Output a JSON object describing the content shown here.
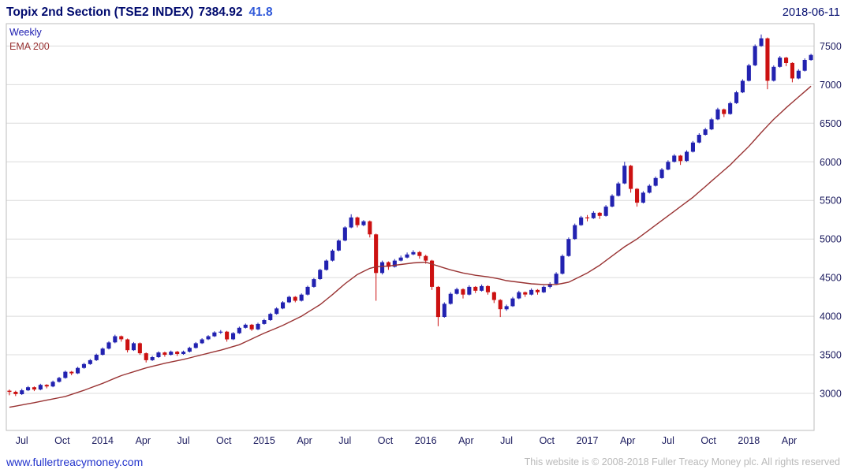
{
  "header": {
    "title": "Topix 2nd Section (TSE2 INDEX)",
    "last_price": "7384.92",
    "change": "41.8",
    "date": "2018-06-11"
  },
  "legend": {
    "series1": "Weekly",
    "series2": "EMA 200"
  },
  "footer": {
    "site_link": "www.fullertreacymoney.com",
    "copyright": "This website is © 2008-2018 Fuller Treacy Money plc. All rights reserved"
  },
  "colors": {
    "up": "#2222b0",
    "down": "#cc1111",
    "ema": "#993333",
    "grid": "#dcdcdc",
    "frame": "#bdbdbd",
    "axis_text": "#1b1b5e",
    "title": "#000a6e",
    "change": "#3059d9",
    "link": "#2233cc",
    "muted": "#b9b9b9"
  },
  "chart_data": {
    "type": "candlestick",
    "title": "Topix 2nd Section (TSE2 INDEX)",
    "interval": "Weekly",
    "overlay": "EMA 200",
    "last": 7384.92,
    "change": 41.8,
    "date": "2018-06-11",
    "legend": [
      "Weekly",
      "EMA 200"
    ],
    "legend_position": "top-left",
    "grid": "horizontal",
    "ylim": [
      2520,
      7790
    ],
    "yticks": [
      3000,
      3500,
      4000,
      4500,
      5000,
      5500,
      6000,
      6500,
      7000,
      7500
    ],
    "xticks": [
      {
        "label": "Jul",
        "pos": 2
      },
      {
        "label": "Oct",
        "pos": 8.5
      },
      {
        "label": "2014",
        "pos": 15
      },
      {
        "label": "Apr",
        "pos": 21.5
      },
      {
        "label": "Jul",
        "pos": 28
      },
      {
        "label": "Oct",
        "pos": 34.5
      },
      {
        "label": "2015",
        "pos": 41
      },
      {
        "label": "Apr",
        "pos": 47.5
      },
      {
        "label": "Jul",
        "pos": 54
      },
      {
        "label": "Oct",
        "pos": 60.5
      },
      {
        "label": "2016",
        "pos": 67
      },
      {
        "label": "Apr",
        "pos": 73.5
      },
      {
        "label": "Jul",
        "pos": 80
      },
      {
        "label": "Oct",
        "pos": 86.5
      },
      {
        "label": "2017",
        "pos": 93
      },
      {
        "label": "Apr",
        "pos": 99.5
      },
      {
        "label": "Jul",
        "pos": 106
      },
      {
        "label": "Oct",
        "pos": 112.5
      },
      {
        "label": "2018",
        "pos": 119
      },
      {
        "label": "Apr",
        "pos": 125.5
      }
    ],
    "candles": [
      [
        3035,
        3050,
        2975,
        3020
      ],
      [
        3020,
        3035,
        2965,
        2990
      ],
      [
        2990,
        3060,
        2980,
        3040
      ],
      [
        3040,
        3095,
        3030,
        3080
      ],
      [
        3080,
        3090,
        3030,
        3050
      ],
      [
        3050,
        3125,
        3040,
        3110
      ],
      [
        3110,
        3120,
        3065,
        3090
      ],
      [
        3090,
        3165,
        3080,
        3150
      ],
      [
        3150,
        3215,
        3140,
        3200
      ],
      [
        3200,
        3295,
        3190,
        3280
      ],
      [
        3280,
        3290,
        3235,
        3260
      ],
      [
        3260,
        3345,
        3250,
        3330
      ],
      [
        3330,
        3395,
        3320,
        3380
      ],
      [
        3380,
        3445,
        3370,
        3430
      ],
      [
        3430,
        3515,
        3420,
        3500
      ],
      [
        3500,
        3595,
        3490,
        3580
      ],
      [
        3580,
        3675,
        3570,
        3660
      ],
      [
        3660,
        3760,
        3650,
        3740
      ],
      [
        3740,
        3750,
        3670,
        3700
      ],
      [
        3700,
        3710,
        3530,
        3560
      ],
      [
        3560,
        3665,
        3550,
        3650
      ],
      [
        3650,
        3660,
        3500,
        3520
      ],
      [
        3520,
        3530,
        3400,
        3430
      ],
      [
        3430,
        3485,
        3420,
        3470
      ],
      [
        3470,
        3545,
        3460,
        3530
      ],
      [
        3530,
        3540,
        3475,
        3500
      ],
      [
        3500,
        3555,
        3490,
        3540
      ],
      [
        3540,
        3550,
        3485,
        3510
      ],
      [
        3510,
        3555,
        3500,
        3540
      ],
      [
        3540,
        3605,
        3530,
        3590
      ],
      [
        3590,
        3665,
        3580,
        3650
      ],
      [
        3650,
        3715,
        3640,
        3700
      ],
      [
        3700,
        3755,
        3690,
        3740
      ],
      [
        3740,
        3805,
        3730,
        3790
      ],
      [
        3790,
        3820,
        3770,
        3800
      ],
      [
        3800,
        3810,
        3670,
        3700
      ],
      [
        3700,
        3795,
        3690,
        3780
      ],
      [
        3780,
        3865,
        3770,
        3850
      ],
      [
        3850,
        3905,
        3840,
        3890
      ],
      [
        3890,
        3900,
        3810,
        3830
      ],
      [
        3830,
        3915,
        3820,
        3900
      ],
      [
        3900,
        3965,
        3890,
        3950
      ],
      [
        3950,
        4045,
        3940,
        4030
      ],
      [
        4030,
        4115,
        4020,
        4100
      ],
      [
        4100,
        4195,
        4090,
        4180
      ],
      [
        4180,
        4265,
        4170,
        4250
      ],
      [
        4250,
        4260,
        4180,
        4200
      ],
      [
        4200,
        4295,
        4190,
        4280
      ],
      [
        4280,
        4395,
        4270,
        4380
      ],
      [
        4380,
        4495,
        4370,
        4480
      ],
      [
        4480,
        4615,
        4470,
        4600
      ],
      [
        4600,
        4735,
        4590,
        4720
      ],
      [
        4720,
        4865,
        4710,
        4850
      ],
      [
        4850,
        4995,
        4840,
        4980
      ],
      [
        4980,
        5165,
        4970,
        5150
      ],
      [
        5150,
        5320,
        5140,
        5280
      ],
      [
        5280,
        5290,
        5150,
        5180
      ],
      [
        5180,
        5245,
        5165,
        5230
      ],
      [
        5230,
        5240,
        5020,
        5060
      ],
      [
        5060,
        5070,
        4200,
        4560
      ],
      [
        4560,
        4720,
        4540,
        4700
      ],
      [
        4700,
        4710,
        4600,
        4640
      ],
      [
        4640,
        4740,
        4630,
        4720
      ],
      [
        4720,
        4785,
        4710,
        4760
      ],
      [
        4760,
        4825,
        4750,
        4800
      ],
      [
        4800,
        4855,
        4790,
        4830
      ],
      [
        4830,
        4845,
        4745,
        4780
      ],
      [
        4780,
        4795,
        4680,
        4720
      ],
      [
        4720,
        4730,
        4340,
        4380
      ],
      [
        4380,
        4390,
        3870,
        3990
      ],
      [
        3990,
        4180,
        3980,
        4160
      ],
      [
        4160,
        4310,
        4150,
        4290
      ],
      [
        4290,
        4370,
        4280,
        4350
      ],
      [
        4350,
        4360,
        4230,
        4280
      ],
      [
        4280,
        4400,
        4270,
        4380
      ],
      [
        4380,
        4390,
        4300,
        4330
      ],
      [
        4330,
        4410,
        4320,
        4390
      ],
      [
        4390,
        4400,
        4280,
        4310
      ],
      [
        4310,
        4320,
        4170,
        4210
      ],
      [
        4210,
        4220,
        3990,
        4090
      ],
      [
        4090,
        4150,
        4070,
        4130
      ],
      [
        4130,
        4250,
        4120,
        4230
      ],
      [
        4230,
        4330,
        4220,
        4310
      ],
      [
        4310,
        4320,
        4250,
        4280
      ],
      [
        4280,
        4360,
        4270,
        4340
      ],
      [
        4340,
        4350,
        4280,
        4310
      ],
      [
        4310,
        4395,
        4300,
        4380
      ],
      [
        4380,
        4440,
        4360,
        4420
      ],
      [
        4420,
        4570,
        4410,
        4550
      ],
      [
        4550,
        4800,
        4540,
        4780
      ],
      [
        4780,
        5020,
        4770,
        5000
      ],
      [
        5000,
        5200,
        4990,
        5180
      ],
      [
        5180,
        5300,
        5170,
        5280
      ],
      [
        5280,
        5310,
        5230,
        5270
      ],
      [
        5270,
        5360,
        5260,
        5340
      ],
      [
        5340,
        5350,
        5260,
        5300
      ],
      [
        5300,
        5440,
        5290,
        5420
      ],
      [
        5420,
        5580,
        5410,
        5560
      ],
      [
        5560,
        5740,
        5550,
        5720
      ],
      [
        5720,
        6000,
        5710,
        5950
      ],
      [
        5950,
        5960,
        5600,
        5650
      ],
      [
        5650,
        5660,
        5420,
        5470
      ],
      [
        5470,
        5620,
        5460,
        5600
      ],
      [
        5600,
        5710,
        5590,
        5690
      ],
      [
        5690,
        5810,
        5680,
        5790
      ],
      [
        5790,
        5920,
        5780,
        5900
      ],
      [
        5900,
        6020,
        5890,
        6000
      ],
      [
        6000,
        6100,
        5990,
        6080
      ],
      [
        6080,
        6090,
        5960,
        6010
      ],
      [
        6010,
        6150,
        6000,
        6130
      ],
      [
        6130,
        6270,
        6120,
        6250
      ],
      [
        6250,
        6370,
        6240,
        6350
      ],
      [
        6350,
        6440,
        6340,
        6420
      ],
      [
        6420,
        6570,
        6410,
        6550
      ],
      [
        6550,
        6700,
        6540,
        6680
      ],
      [
        6680,
        6690,
        6580,
        6620
      ],
      [
        6620,
        6780,
        6610,
        6760
      ],
      [
        6760,
        6920,
        6750,
        6900
      ],
      [
        6900,
        7070,
        6890,
        7050
      ],
      [
        7050,
        7270,
        7040,
        7250
      ],
      [
        7250,
        7520,
        7240,
        7500
      ],
      [
        7500,
        7650,
        7490,
        7600
      ],
      [
        7600,
        7610,
        6940,
        7050
      ],
      [
        7050,
        7250,
        7040,
        7230
      ],
      [
        7230,
        7370,
        7220,
        7350
      ],
      [
        7350,
        7360,
        7240,
        7280
      ],
      [
        7280,
        7290,
        7030,
        7080
      ],
      [
        7080,
        7200,
        7070,
        7180
      ],
      [
        7180,
        7340,
        7170,
        7320
      ],
      [
        7320,
        7400,
        7310,
        7385
      ]
    ],
    "ema": [
      2820,
      2835,
      2850,
      2865,
      2880,
      2896,
      2912,
      2928,
      2944,
      2960,
      2987,
      3013,
      3040,
      3070,
      3100,
      3130,
      3163,
      3197,
      3230,
      3255,
      3280,
      3305,
      3330,
      3350,
      3370,
      3390,
      3407,
      3423,
      3440,
      3460,
      3480,
      3500,
      3520,
      3540,
      3560,
      3583,
      3607,
      3630,
      3668,
      3705,
      3743,
      3780,
      3813,
      3847,
      3880,
      3920,
      3960,
      4000,
      4050,
      4100,
      4150,
      4215,
      4280,
      4350,
      4420,
      4480,
      4540,
      4580,
      4620,
      4640,
      4645,
      4650,
      4660,
      4670,
      4680,
      4690,
      4695,
      4700,
      4675,
      4650,
      4625,
      4600,
      4580,
      4560,
      4545,
      4530,
      4520,
      4510,
      4495,
      4480,
      4460,
      4450,
      4440,
      4430,
      4420,
      4415,
      4410,
      4410,
      4410,
      4425,
      4440,
      4480,
      4520,
      4560,
      4610,
      4660,
      4720,
      4780,
      4840,
      4900,
      4950,
      5000,
      5060,
      5120,
      5180,
      5240,
      5300,
      5360,
      5420,
      5480,
      5540,
      5610,
      5680,
      5750,
      5820,
      5890,
      5960,
      6040,
      6120,
      6200,
      6290,
      6380,
      6465,
      6550,
      6625,
      6700,
      6770,
      6840,
      6910,
      6980
    ]
  }
}
